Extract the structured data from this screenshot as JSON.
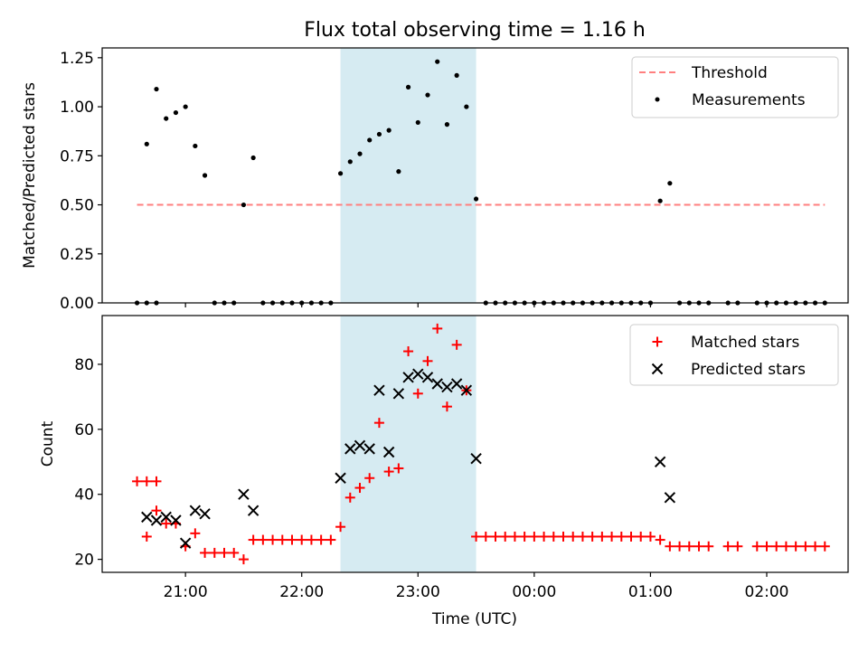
{
  "title": "Flux total observing time = 1.16 h",
  "colors": {
    "threshold": "#ff7f7f",
    "measurement": "#000000",
    "matched": "#ff0000",
    "predicted": "#000000",
    "highlight": "#add8e6"
  },
  "chart_data": [
    {
      "type": "scatter",
      "panel": "top",
      "xlabel": "",
      "ylabel": "Matched/Predicted stars",
      "xlim": [
        "20:17",
        "02:42"
      ],
      "ylim": [
        0,
        1.3
      ],
      "yticks": [
        "0.00",
        "0.25",
        "0.50",
        "0.75",
        "1.00",
        "1.25"
      ],
      "legend_position": "upper right",
      "highlight_span": [
        "22:20",
        "23:30"
      ],
      "series": [
        {
          "name": "Threshold",
          "type": "line",
          "style": "dashed",
          "x": [
            "20:35",
            "02:30"
          ],
          "y": [
            0.5,
            0.5
          ]
        },
        {
          "name": "Measurements",
          "type": "scatter",
          "marker": "dot",
          "points": [
            [
              "20:35",
              0
            ],
            [
              "20:40",
              0
            ],
            [
              "20:45",
              0
            ],
            [
              "20:40",
              0.81
            ],
            [
              "20:45",
              1.09
            ],
            [
              "20:50",
              0.94
            ],
            [
              "20:55",
              0.97
            ],
            [
              "21:00",
              1.0
            ],
            [
              "21:05",
              0.8
            ],
            [
              "21:10",
              0.65
            ],
            [
              "21:15",
              0
            ],
            [
              "21:20",
              0
            ],
            [
              "21:25",
              0
            ],
            [
              "21:30",
              0.5
            ],
            [
              "21:35",
              0.74
            ],
            [
              "21:40",
              0
            ],
            [
              "21:45",
              0
            ],
            [
              "21:50",
              0
            ],
            [
              "21:55",
              0
            ],
            [
              "22:00",
              0
            ],
            [
              "22:05",
              0
            ],
            [
              "22:10",
              0
            ],
            [
              "22:15",
              0
            ],
            [
              "22:20",
              0.66
            ],
            [
              "22:25",
              0.72
            ],
            [
              "22:30",
              0.76
            ],
            [
              "22:35",
              0.83
            ],
            [
              "22:40",
              0.86
            ],
            [
              "22:45",
              0.88
            ],
            [
              "22:50",
              0.67
            ],
            [
              "22:55",
              1.1
            ],
            [
              "23:00",
              0.92
            ],
            [
              "23:05",
              1.06
            ],
            [
              "23:10",
              1.23
            ],
            [
              "23:15",
              0.91
            ],
            [
              "23:20",
              1.16
            ],
            [
              "23:25",
              1.0
            ],
            [
              "23:30",
              0.53
            ],
            [
              "23:35",
              0
            ],
            [
              "23:40",
              0
            ],
            [
              "23:45",
              0
            ],
            [
              "23:50",
              0
            ],
            [
              "23:55",
              0
            ],
            [
              "00:00",
              0
            ],
            [
              "00:05",
              0
            ],
            [
              "00:10",
              0
            ],
            [
              "00:15",
              0
            ],
            [
              "00:20",
              0
            ],
            [
              "00:25",
              0
            ],
            [
              "00:30",
              0
            ],
            [
              "00:35",
              0
            ],
            [
              "00:40",
              0
            ],
            [
              "00:45",
              0
            ],
            [
              "00:50",
              0
            ],
            [
              "00:55",
              0
            ],
            [
              "01:00",
              0
            ],
            [
              "01:05",
              0.52
            ],
            [
              "01:10",
              0.61
            ],
            [
              "01:15",
              0
            ],
            [
              "01:20",
              0
            ],
            [
              "01:25",
              0
            ],
            [
              "01:30",
              0
            ],
            [
              "01:40",
              0
            ],
            [
              "01:45",
              0
            ],
            [
              "01:55",
              0
            ],
            [
              "02:00",
              0
            ],
            [
              "02:05",
              0
            ],
            [
              "02:10",
              0
            ],
            [
              "02:15",
              0
            ],
            [
              "02:20",
              0
            ],
            [
              "02:25",
              0
            ],
            [
              "02:30",
              0
            ]
          ]
        }
      ]
    },
    {
      "type": "scatter",
      "panel": "bottom",
      "xlabel": "Time (UTC)",
      "ylabel": "Count",
      "xlim": [
        "20:17",
        "02:42"
      ],
      "ylim": [
        16,
        95
      ],
      "yticks": [
        "20",
        "40",
        "60",
        "80"
      ],
      "xticks": [
        "21:00",
        "22:00",
        "23:00",
        "00:00",
        "01:00",
        "02:00"
      ],
      "legend_position": "upper right",
      "highlight_span": [
        "22:20",
        "23:30"
      ],
      "series": [
        {
          "name": "Matched stars",
          "marker": "plus",
          "points": [
            [
              "20:35",
              44
            ],
            [
              "20:40",
              44
            ],
            [
              "20:45",
              44
            ],
            [
              "20:40",
              27
            ],
            [
              "20:45",
              35
            ],
            [
              "20:50",
              31
            ],
            [
              "20:55",
              31
            ],
            [
              "21:00",
              24
            ],
            [
              "21:05",
              28
            ],
            [
              "21:10",
              22
            ],
            [
              "21:15",
              22
            ],
            [
              "21:20",
              22
            ],
            [
              "21:25",
              22
            ],
            [
              "21:30",
              20
            ],
            [
              "21:35",
              26
            ],
            [
              "21:40",
              26
            ],
            [
              "21:45",
              26
            ],
            [
              "21:50",
              26
            ],
            [
              "21:55",
              26
            ],
            [
              "22:00",
              26
            ],
            [
              "22:05",
              26
            ],
            [
              "22:10",
              26
            ],
            [
              "22:15",
              26
            ],
            [
              "22:20",
              30
            ],
            [
              "22:25",
              39
            ],
            [
              "22:30",
              42
            ],
            [
              "22:35",
              45
            ],
            [
              "22:40",
              62
            ],
            [
              "22:45",
              47
            ],
            [
              "22:50",
              48
            ],
            [
              "22:55",
              84
            ],
            [
              "23:00",
              71
            ],
            [
              "23:05",
              81
            ],
            [
              "23:10",
              91
            ],
            [
              "23:15",
              67
            ],
            [
              "23:20",
              86
            ],
            [
              "23:25",
              72
            ],
            [
              "23:30",
              27
            ],
            [
              "23:35",
              27
            ],
            [
              "23:40",
              27
            ],
            [
              "23:45",
              27
            ],
            [
              "23:50",
              27
            ],
            [
              "23:55",
              27
            ],
            [
              "00:00",
              27
            ],
            [
              "00:05",
              27
            ],
            [
              "00:10",
              27
            ],
            [
              "00:15",
              27
            ],
            [
              "00:20",
              27
            ],
            [
              "00:25",
              27
            ],
            [
              "00:30",
              27
            ],
            [
              "00:35",
              27
            ],
            [
              "00:40",
              27
            ],
            [
              "00:45",
              27
            ],
            [
              "00:50",
              27
            ],
            [
              "00:55",
              27
            ],
            [
              "01:00",
              27
            ],
            [
              "01:05",
              26
            ],
            [
              "01:10",
              24
            ],
            [
              "01:15",
              24
            ],
            [
              "01:20",
              24
            ],
            [
              "01:25",
              24
            ],
            [
              "01:30",
              24
            ],
            [
              "01:40",
              24
            ],
            [
              "01:45",
              24
            ],
            [
              "01:55",
              24
            ],
            [
              "02:00",
              24
            ],
            [
              "02:05",
              24
            ],
            [
              "02:10",
              24
            ],
            [
              "02:15",
              24
            ],
            [
              "02:20",
              24
            ],
            [
              "02:25",
              24
            ],
            [
              "02:30",
              24
            ]
          ]
        },
        {
          "name": "Predicted stars",
          "marker": "x",
          "points": [
            [
              "20:40",
              33
            ],
            [
              "20:45",
              32
            ],
            [
              "20:50",
              33
            ],
            [
              "20:55",
              32
            ],
            [
              "21:00",
              25
            ],
            [
              "21:05",
              35
            ],
            [
              "21:10",
              34
            ],
            [
              "21:30",
              40
            ],
            [
              "21:35",
              35
            ],
            [
              "22:20",
              45
            ],
            [
              "22:25",
              54
            ],
            [
              "22:30",
              55
            ],
            [
              "22:35",
              54
            ],
            [
              "22:40",
              72
            ],
            [
              "22:45",
              53
            ],
            [
              "22:50",
              71
            ],
            [
              "22:55",
              76
            ],
            [
              "23:00",
              77
            ],
            [
              "23:05",
              76
            ],
            [
              "23:10",
              74
            ],
            [
              "23:15",
              73
            ],
            [
              "23:20",
              74
            ],
            [
              "23:25",
              72
            ],
            [
              "23:30",
              51
            ],
            [
              "01:05",
              50
            ],
            [
              "01:10",
              39
            ]
          ]
        }
      ]
    }
  ]
}
